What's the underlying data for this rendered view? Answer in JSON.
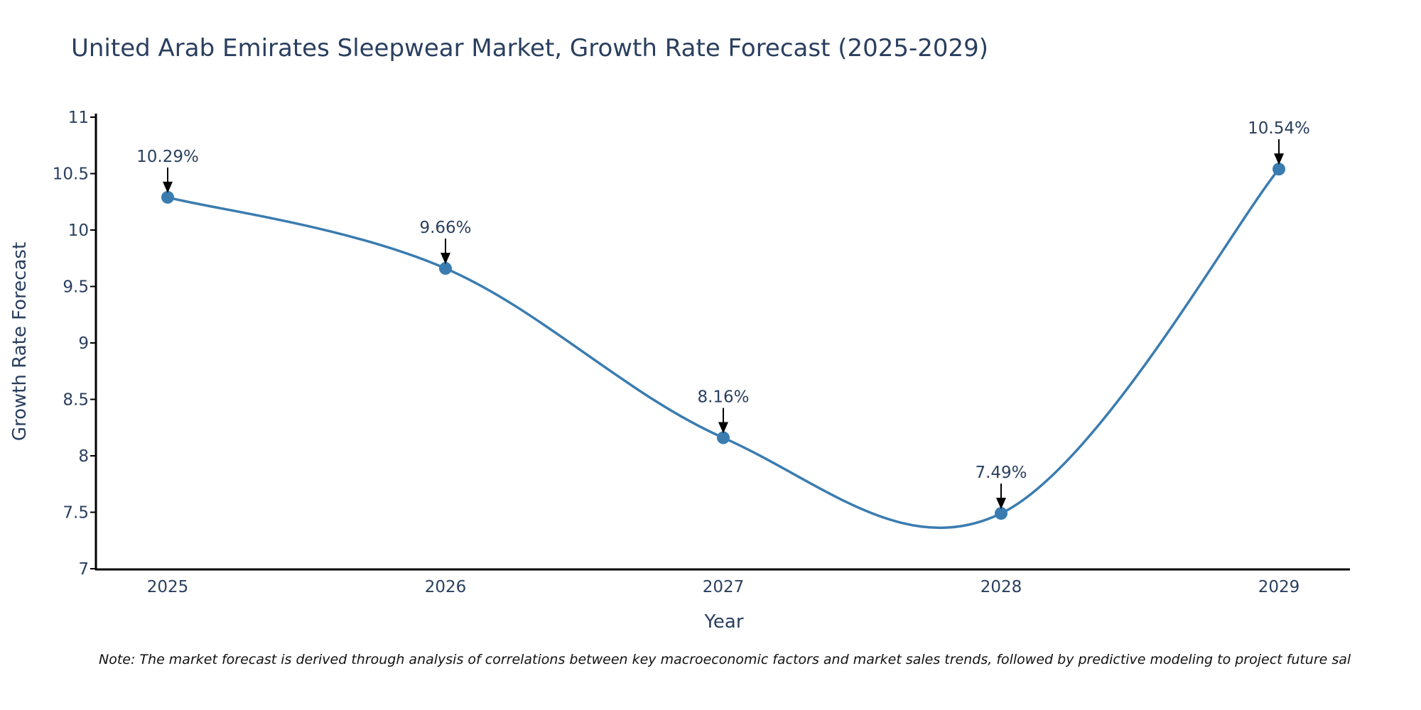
{
  "chart_data": {
    "type": "line",
    "title": "United Arab Emirates Sleepwear Market, Growth Rate Forecast (2025-2029)",
    "xlabel": "Year",
    "ylabel": "Growth Rate Forecast",
    "x": [
      "2025",
      "2026",
      "2027",
      "2028",
      "2029"
    ],
    "series": [
      {
        "name": "Growth Rate Forecast",
        "values": [
          10.29,
          9.66,
          8.16,
          7.49,
          10.54
        ],
        "labels": [
          "10.29%",
          "9.66%",
          "8.16%",
          "7.49%",
          "10.54%"
        ]
      }
    ],
    "ylim": [
      7,
      11
    ],
    "yticks": [
      7,
      7.5,
      8,
      8.5,
      9,
      9.5,
      10,
      10.5,
      11
    ],
    "ytick_labels": [
      "7",
      "7.5",
      "8",
      "8.5",
      "9",
      "9.5",
      "10",
      "10.5",
      "11"
    ],
    "line_color": "#3a7cb0",
    "grid": false,
    "legend": "none"
  },
  "note": "Note: The market forecast is derived through analysis of correlations between key macroeconomic factors and market sales trends, followed by predictive modeling to project future sal"
}
